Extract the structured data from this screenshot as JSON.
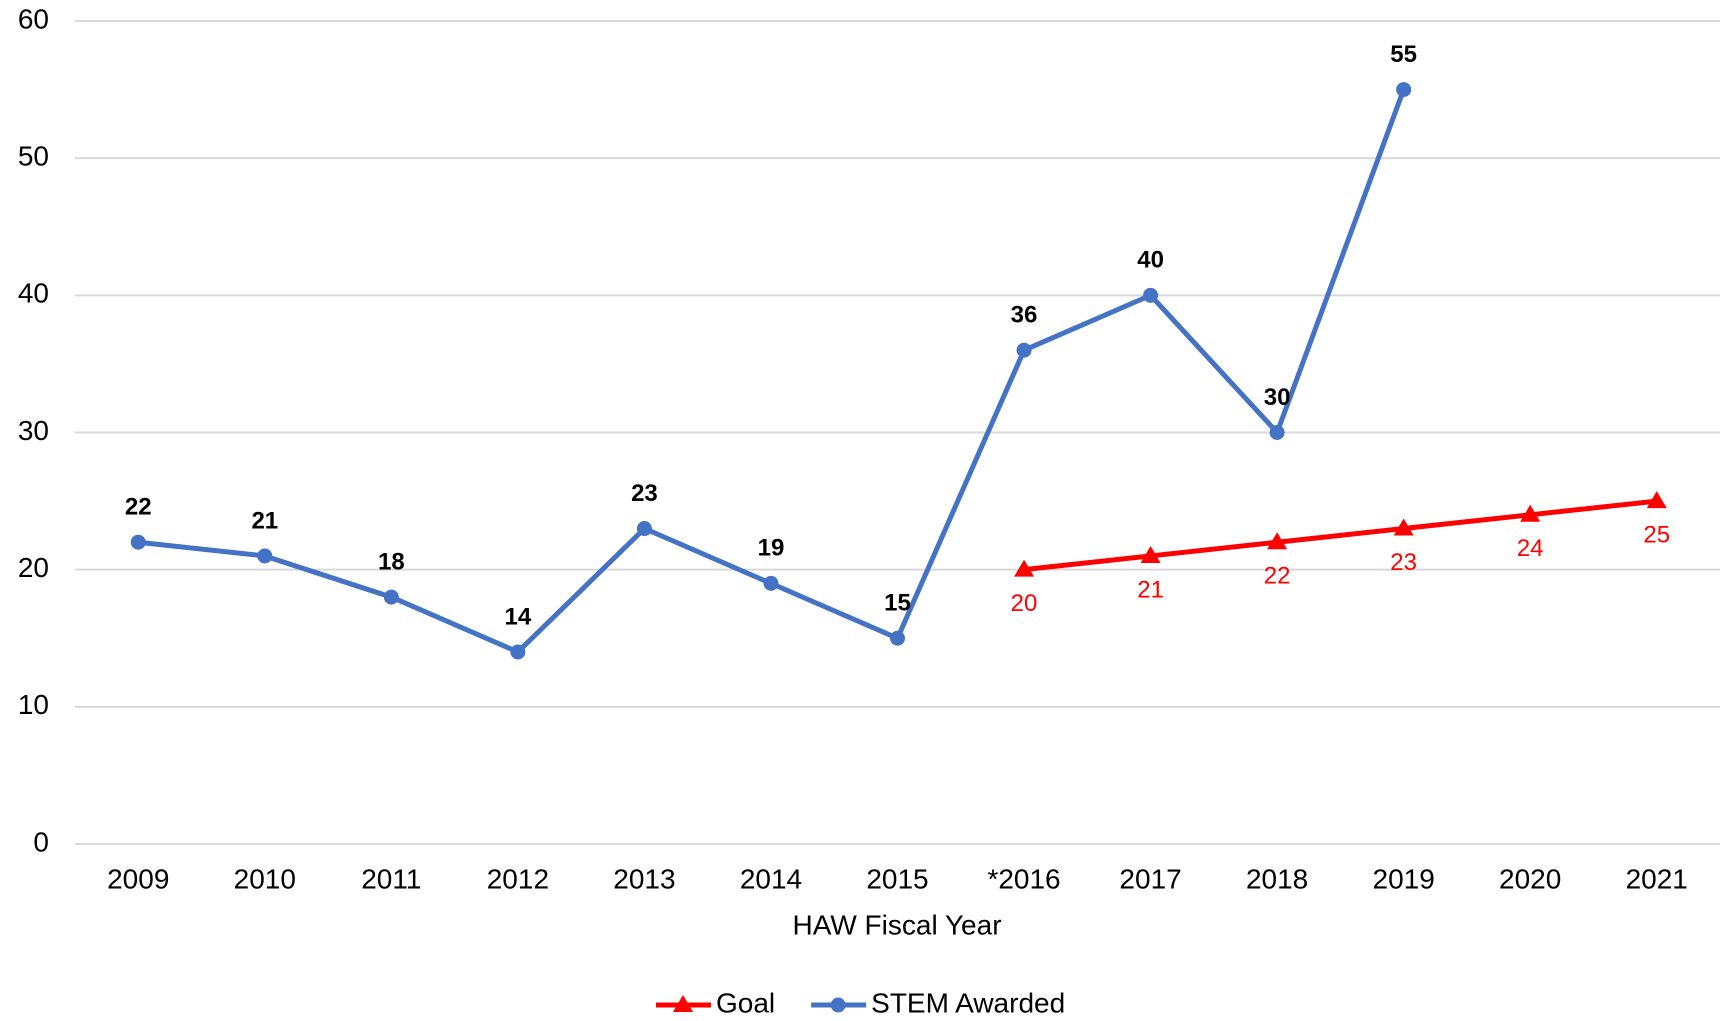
{
  "chart_data": {
    "type": "line",
    "x_label": "HAW Fiscal Year",
    "categories": [
      "2009",
      "2010",
      "2011",
      "2012",
      "2013",
      "2014",
      "2015",
      "*2016",
      "2017",
      "2018",
      "2019",
      "2020",
      "2021"
    ],
    "series": [
      {
        "name": "Goal",
        "color": "#ff0000",
        "marker": "triangle",
        "values": [
          null,
          null,
          null,
          null,
          null,
          null,
          null,
          20,
          21,
          22,
          23,
          24,
          25
        ]
      },
      {
        "name": "STEM Awarded",
        "color": "#4472c4",
        "marker": "circle",
        "values": [
          22,
          21,
          18,
          14,
          23,
          19,
          15,
          36,
          40,
          30,
          55,
          null,
          null
        ]
      }
    ],
    "ylim": [
      0,
      60
    ],
    "yticks": [
      0,
      10,
      20,
      30,
      40,
      50,
      60
    ],
    "grid": true,
    "legend": "bottom"
  }
}
